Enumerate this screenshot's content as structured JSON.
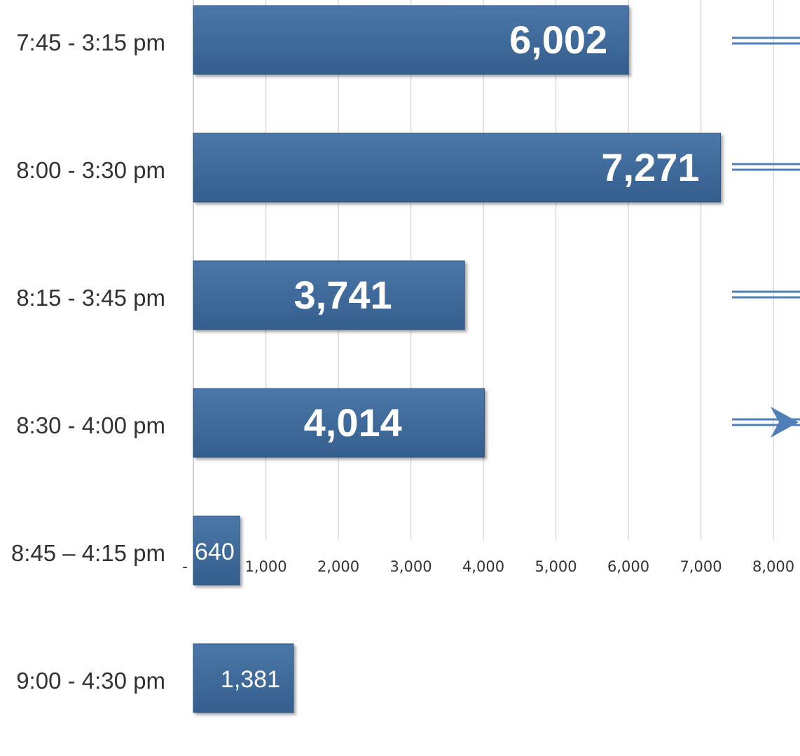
{
  "chart_data": {
    "type": "bar",
    "orientation": "horizontal",
    "categories": [
      "7:45 - 3:15 pm",
      "8:00 - 3:30 pm",
      "8:15 - 3:45 pm",
      "8:30 - 4:00 pm",
      "8:45 – 4:15 pm",
      "9:00 - 4:30 pm"
    ],
    "values": [
      6002,
      7271,
      3741,
      4014,
      640,
      1381
    ],
    "value_labels": [
      "6,002",
      "7,271",
      "3,741",
      "4,014",
      "640",
      "1,381"
    ],
    "xlim": [
      0,
      8000
    ],
    "x_ticks": [
      "-",
      "1,000",
      "2,000",
      "3,000",
      "4,000",
      "5,000",
      "6,000",
      "7,000",
      "8,000"
    ],
    "grid": true,
    "bar_color": "#3e6a9c",
    "arrows": 4
  }
}
